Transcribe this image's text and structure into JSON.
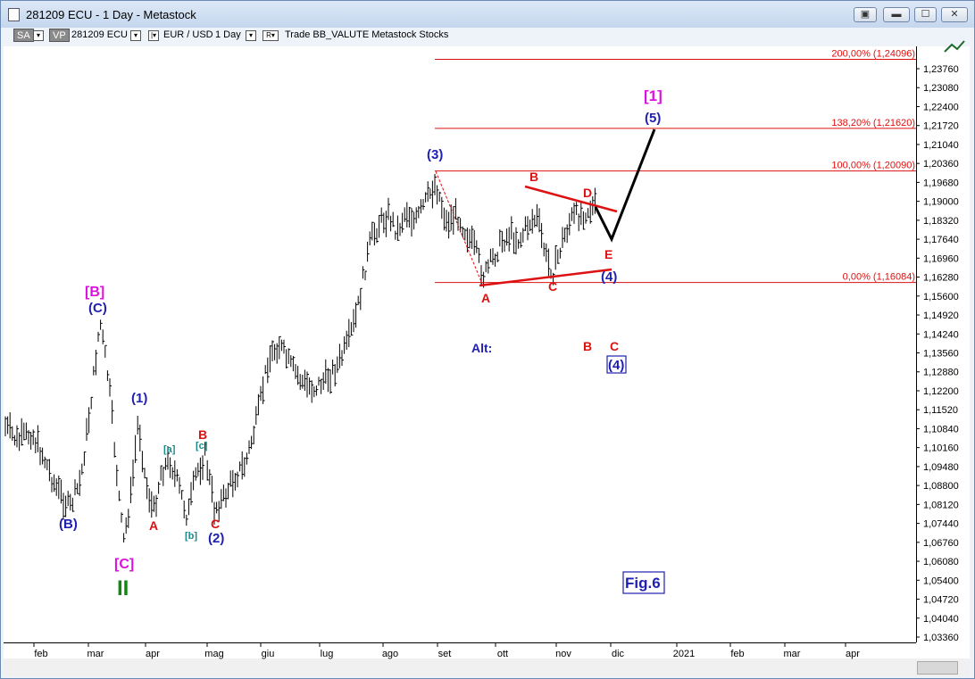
{
  "window": {
    "title": "281209 ECU - 1 Day - Metastock",
    "buttons": {
      "restore_mdi": "▣",
      "minimize": "▬",
      "maximize": "☐",
      "close": "✕"
    }
  },
  "toolbar": {
    "sa": "SA",
    "vp": "VP",
    "symbol": "281209 ECU",
    "pair": "EUR / USD",
    "period": "1 Day",
    "r": "R",
    "rest": "Trade  BB_VALUTE  Metastock  Stocks"
  },
  "price_axis": [
    "1,23760",
    "1,23080",
    "1,22400",
    "1,21720",
    "1,21040",
    "1,20360",
    "1,19680",
    "1,19000",
    "1,18320",
    "1,17640",
    "1,16960",
    "1,16280",
    "1,15600",
    "1,14920",
    "1,14240",
    "1,13560",
    "1,12880",
    "1,12200",
    "1,11520",
    "1,10840",
    "1,10160",
    "1,09480",
    "1,08800",
    "1,08120",
    "1,07440",
    "1,06760",
    "1,06080",
    "1,05400",
    "1,04720",
    "1,04040",
    "1,03360"
  ],
  "date_axis": [
    "feb",
    "mar",
    "apr",
    "mag",
    "giu",
    "lug",
    "ago",
    "set",
    "ott",
    "nov",
    "dic",
    "2021",
    "feb",
    "mar",
    "apr"
  ],
  "fib_levels": [
    {
      "label": "200,00% (1,24096)",
      "price": 1.24096
    },
    {
      "label": "138,20% (1,21620)",
      "price": 1.2162
    },
    {
      "label": "100,00% (1,20090)",
      "price": 1.2009
    },
    {
      "label": "0,00% (1,16084)",
      "price": 1.16084
    }
  ],
  "wave_labels": {
    "B_bracket": "[B]",
    "C_paren_top": "(C)",
    "B_paren": "(B)",
    "C_bracket": "[C]",
    "II": "II",
    "one_paren": "(1)",
    "A_first": "A",
    "a_small": "[a]",
    "b_small": "[b]",
    "c_small": "[c]",
    "B_red_first": "B",
    "C_red_first": "C",
    "two_paren": "(2)",
    "three_paren": "(3)",
    "A_tri": "A",
    "B_tri": "B",
    "C_tri": "C",
    "D_tri": "D",
    "E_tri": "E",
    "four_paren": "(4)",
    "five_paren": "(5)",
    "one_bracket": "[1]",
    "alt": "Alt:",
    "alt_B": "B",
    "alt_C": "C",
    "alt_four": "(4)",
    "fig": "Fig.6"
  },
  "colors": {
    "blue": "#1f1fb0",
    "red": "#dd1111",
    "magenta": "#dd11dd",
    "green": "#118811",
    "teal": "#188c8c",
    "fib": "#dd1111"
  }
}
